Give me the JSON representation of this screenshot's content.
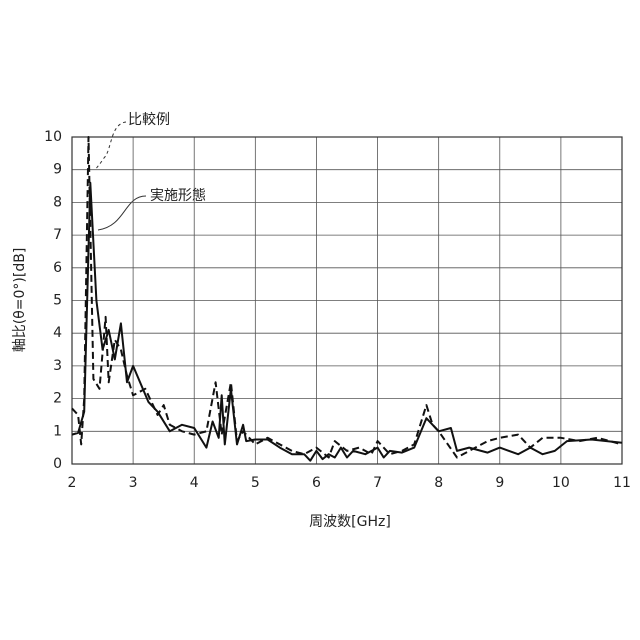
{
  "chart_data": {
    "type": "line",
    "x_label": "周波数[GHz]",
    "y_label": "軸比(θ=0°)[dB]",
    "xlim": [
      2,
      11
    ],
    "xticks": [
      2,
      3,
      4,
      5,
      6,
      7,
      8,
      9,
      10,
      11
    ],
    "ylim": [
      0,
      10
    ],
    "yticks": [
      0,
      1,
      2,
      3,
      4,
      5,
      6,
      7,
      8,
      9,
      10
    ],
    "grid": true,
    "series": [
      {
        "name": "実施形態",
        "color": "#111111",
        "style": "solid",
        "x": [
          2.0,
          2.1,
          2.2,
          2.3,
          2.4,
          2.5,
          2.6,
          2.7,
          2.8,
          2.9,
          3.0,
          3.25,
          3.4,
          3.6,
          3.8,
          4.0,
          4.2,
          4.3,
          4.4,
          4.45,
          4.5,
          4.6,
          4.7,
          4.8,
          4.85,
          5.0,
          5.2,
          5.4,
          5.6,
          5.8,
          5.9,
          6.0,
          6.1,
          6.2,
          6.3,
          6.4,
          6.5,
          6.6,
          6.8,
          7.0,
          7.1,
          7.2,
          7.4,
          7.6,
          7.8,
          8.0,
          8.2,
          8.3,
          8.5,
          8.8,
          9.0,
          9.3,
          9.5,
          9.7,
          9.9,
          10.1,
          10.5,
          11.0
        ],
        "values": [
          0.9,
          0.95,
          1.6,
          8.6,
          5.0,
          3.5,
          4.1,
          3.2,
          4.3,
          2.5,
          3.0,
          1.9,
          1.6,
          1.0,
          1.2,
          1.1,
          0.5,
          1.3,
          0.8,
          2.1,
          0.6,
          2.3,
          0.6,
          1.2,
          0.7,
          0.75,
          0.75,
          0.5,
          0.3,
          0.3,
          0.1,
          0.4,
          0.15,
          0.3,
          0.2,
          0.5,
          0.2,
          0.4,
          0.3,
          0.5,
          0.2,
          0.4,
          0.35,
          0.5,
          1.4,
          1.0,
          1.1,
          0.4,
          0.5,
          0.35,
          0.5,
          0.3,
          0.5,
          0.3,
          0.4,
          0.7,
          0.75,
          0.65
        ]
      },
      {
        "name": "比較例",
        "color": "#111111",
        "style": "dashed",
        "x": [
          2.0,
          2.1,
          2.15,
          2.2,
          2.27,
          2.35,
          2.45,
          2.55,
          2.6,
          2.7,
          2.8,
          2.9,
          3.0,
          3.2,
          3.4,
          3.5,
          3.6,
          3.8,
          4.0,
          4.2,
          4.35,
          4.45,
          4.6,
          4.7,
          4.8,
          5.0,
          5.2,
          5.4,
          5.6,
          5.8,
          6.0,
          6.2,
          6.3,
          6.5,
          6.7,
          6.9,
          7.0,
          7.2,
          7.4,
          7.6,
          7.8,
          7.9,
          8.0,
          8.3,
          8.5,
          8.8,
          9.0,
          9.3,
          9.5,
          9.7,
          10.0,
          10.3,
          10.6,
          11.0
        ],
        "values": [
          1.7,
          1.5,
          0.6,
          2.0,
          10,
          2.6,
          2.3,
          4.5,
          2.5,
          3.8,
          3.5,
          2.7,
          2.1,
          2.3,
          1.5,
          1.8,
          1.2,
          1.0,
          0.9,
          1.0,
          2.5,
          0.9,
          2.5,
          0.7,
          1.0,
          0.6,
          0.8,
          0.6,
          0.4,
          0.3,
          0.5,
          0.2,
          0.7,
          0.4,
          0.5,
          0.3,
          0.7,
          0.3,
          0.4,
          0.6,
          1.8,
          1.2,
          1.0,
          0.2,
          0.4,
          0.7,
          0.8,
          0.9,
          0.5,
          0.8,
          0.8,
          0.7,
          0.8,
          0.6
        ]
      }
    ]
  }
}
